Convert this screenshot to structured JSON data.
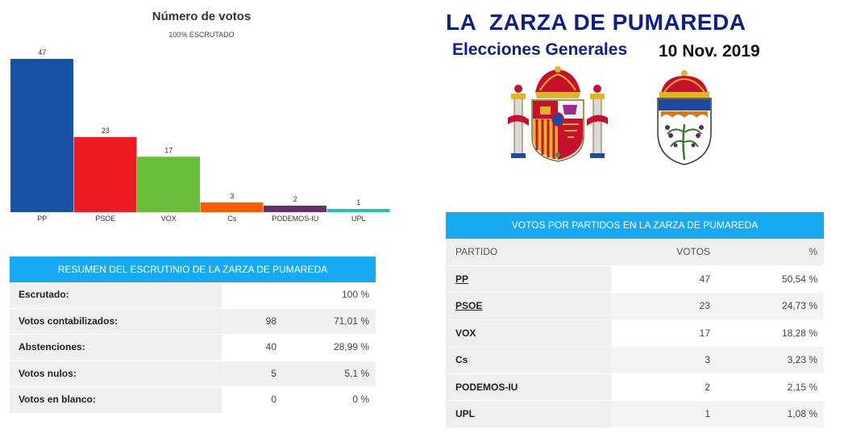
{
  "header": {
    "title": "LA  ZARZA DE PUMAREDA",
    "subtitle": "Elecciones Generales",
    "date": "10 Nov. 2019"
  },
  "chart_data": {
    "type": "bar",
    "title": "Número de votos",
    "subtitle": "100% ESCRUTADO",
    "categories": [
      "PP",
      "PSOE",
      "VOX",
      "Cs",
      "PODEMOS-IU",
      "UPL"
    ],
    "values": [
      47,
      23,
      17,
      3,
      2,
      1
    ],
    "colors": [
      "#1653a6",
      "#ec1b24",
      "#6abf3a",
      "#ff5b00",
      "#6b2d6b",
      "#20c4b0"
    ],
    "ylim": [
      0,
      47
    ],
    "grid": false,
    "legend": "none"
  },
  "summary": {
    "heading": "RESUMEN DEL ESCRUTINIO DE LA ZARZA DE PUMAREDA",
    "rows": [
      {
        "label": "Escrutado:",
        "value": "",
        "pct": "100 %"
      },
      {
        "label": "Votos contabilizados:",
        "value": "98",
        "pct": "71,01 %"
      },
      {
        "label": "Abstenciones:",
        "value": "40",
        "pct": "28,99 %"
      },
      {
        "label": "Votos nulos:",
        "value": "5",
        "pct": "5,1 %"
      },
      {
        "label": "Votos en blanco:",
        "value": "0",
        "pct": "0 %"
      }
    ]
  },
  "parties": {
    "heading": "VOTOS POR PARTIDOS EN LA ZARZA DE PUMAREDA",
    "columns": {
      "party": "PARTIDO",
      "votes": "VOTOS",
      "pct": "%"
    },
    "rows": [
      {
        "party": "PP",
        "votes": "47",
        "pct": "50,54 %"
      },
      {
        "party": "PSOE",
        "votes": "23",
        "pct": "24,73 %"
      },
      {
        "party": "VOX",
        "votes": "17",
        "pct": "18,28 %"
      },
      {
        "party": "Cs",
        "votes": "3",
        "pct": "3,23 %"
      },
      {
        "party": "PODEMOS-IU",
        "votes": "2",
        "pct": "2,15 %"
      },
      {
        "party": "UPL",
        "votes": "1",
        "pct": "1,08 %"
      }
    ]
  },
  "icons": {
    "spain_crest": "spain-coat-of-arms-icon",
    "town_crest": "town-coat-of-arms-icon"
  }
}
